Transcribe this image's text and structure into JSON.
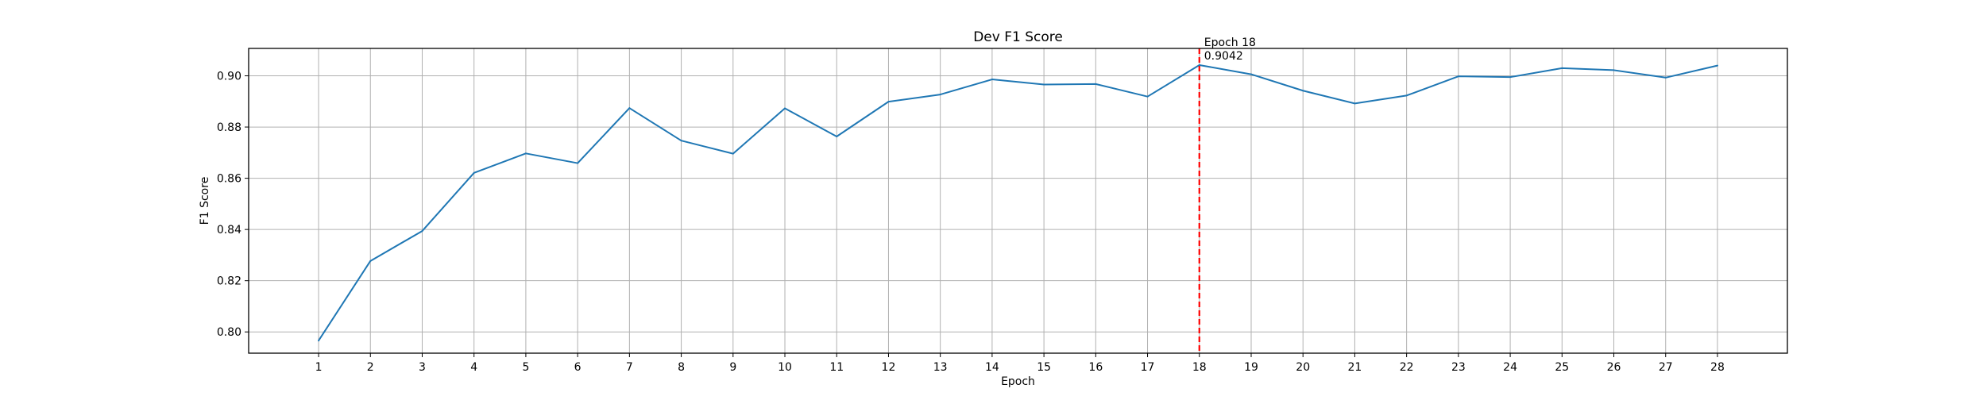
{
  "chart_data": {
    "type": "line",
    "title": "Dev F1 Score",
    "xlabel": "Epoch",
    "ylabel": "F1 Score",
    "xlim": [
      -0.35,
      29.35
    ],
    "ylim": [
      0.7917,
      0.9107
    ],
    "x_ticks": [
      1,
      2,
      3,
      4,
      5,
      6,
      7,
      8,
      9,
      10,
      11,
      12,
      13,
      14,
      15,
      16,
      17,
      18,
      19,
      20,
      21,
      22,
      23,
      24,
      25,
      26,
      27,
      28
    ],
    "y_ticks": [
      0.8,
      0.82,
      0.84,
      0.86,
      0.88,
      0.9
    ],
    "y_tick_labels": [
      "0.80",
      "0.82",
      "0.84",
      "0.86",
      "0.88",
      "0.90"
    ],
    "grid": true,
    "series": [
      {
        "color": "#1f77b4",
        "x": [
          1,
          2,
          3,
          4,
          5,
          6,
          7,
          8,
          9,
          10,
          11,
          12,
          13,
          14,
          15,
          16,
          17,
          18,
          19,
          20,
          21,
          22,
          23,
          24,
          25,
          26,
          27,
          28
        ],
        "values": [
          0.7966,
          0.8277,
          0.8394,
          0.8621,
          0.8697,
          0.8659,
          0.8874,
          0.8747,
          0.8696,
          0.8873,
          0.8763,
          0.8899,
          0.8927,
          0.8986,
          0.8966,
          0.8968,
          0.8919,
          0.9042,
          0.9006,
          0.8942,
          0.8892,
          0.8923,
          0.8998,
          0.8995,
          0.903,
          0.9022,
          0.8993,
          0.904
        ]
      }
    ],
    "best_marker": {
      "x": 18,
      "color": "#ff0000",
      "style": "dashed",
      "label_line1": "Epoch 18",
      "label_line2": "0.9042"
    }
  }
}
